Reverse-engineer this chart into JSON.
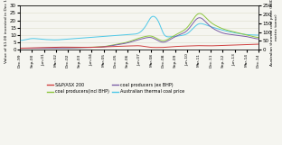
{
  "ylabel_left": "Value of $1.00 invested in Dec 1999",
  "ylabel_right": "Australian thermal coal price (AUD per\nmetric tonne)",
  "ylim_left": [
    0,
    30
  ],
  "ylim_right": [
    0,
    250
  ],
  "yticks_left": [
    0,
    5,
    10,
    15,
    20,
    25,
    30
  ],
  "yticks_right": [
    0,
    50,
    100,
    150,
    200,
    250
  ],
  "colors": {
    "asx200": "#d04040",
    "coal_incl": "#8dc63f",
    "coal_excl": "#7b5ea7",
    "coal_price": "#4ec8e8"
  },
  "legend": [
    {
      "label": "S&P/ASX 200",
      "color": "#d04040"
    },
    {
      "label": "coal producers(incl BHP)",
      "color": "#8dc63f"
    },
    {
      "label": "coal producers (ex BHP)",
      "color": "#7b5ea7"
    },
    {
      "label": "Australian thermal coal price",
      "color": "#4ec8e8"
    }
  ],
  "x_tick_labels": [
    "Dec-99",
    "Sep-00",
    "Jun-01",
    "Mar-02",
    "Dec-02",
    "Sep-03",
    "Jun-04",
    "Mar-05",
    "Dec-05",
    "Sep-06",
    "Jun-07",
    "Mar-08",
    "Dec-08",
    "Sep-09",
    "Jun-10",
    "Mar-11",
    "Dec-11",
    "Sep-12",
    "Jun-13",
    "Mar-14",
    "Dec-14"
  ],
  "x_tick_positions": [
    0,
    9,
    18,
    27,
    36,
    45,
    54,
    63,
    72,
    81,
    90,
    99,
    108,
    117,
    126,
    135,
    144,
    153,
    162,
    171,
    180
  ],
  "background_color": "#f5f5f0",
  "grid_color": "#ddddcc"
}
